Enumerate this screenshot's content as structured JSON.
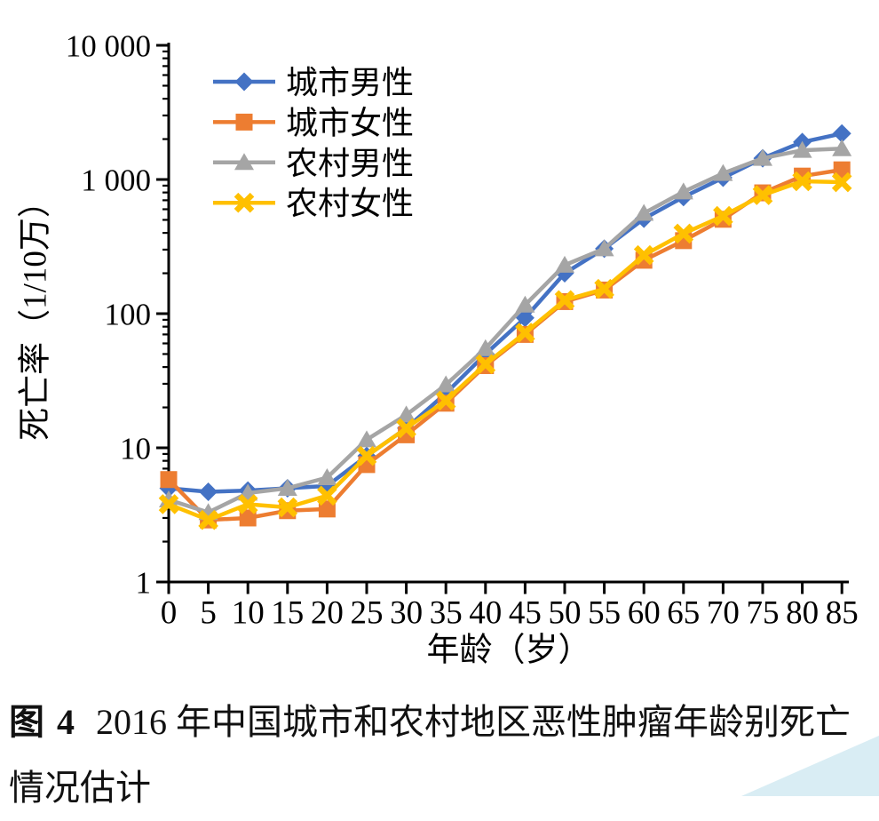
{
  "figure": {
    "caption_label": "图 4",
    "caption_line1": "2016 年中国城市和农村地区恶性肿瘤年龄别死亡",
    "caption_line2": "情况估计"
  },
  "chart_data": {
    "type": "line",
    "title": "",
    "xlabel": "年龄（岁）",
    "ylabel": "死亡率（1/10万）",
    "y_scale": "log10",
    "ylim": [
      1,
      10000
    ],
    "grid": false,
    "legend_position": "top-left-inside",
    "y_ticks": [
      {
        "value": 1,
        "label": "1"
      },
      {
        "value": 10,
        "label": "10"
      },
      {
        "value": 100,
        "label": "100"
      },
      {
        "value": 1000,
        "label": "1 000"
      },
      {
        "value": 10000,
        "label": "10 000"
      }
    ],
    "x": [
      0,
      5,
      10,
      15,
      20,
      25,
      30,
      35,
      40,
      45,
      50,
      55,
      60,
      65,
      70,
      75,
      80,
      85
    ],
    "series": [
      {
        "name": "城市男性",
        "color": "#4472C4",
        "marker": "diamond",
        "values": [
          5.0,
          4.7,
          4.8,
          5.0,
          5.2,
          8.7,
          14.0,
          25.5,
          50,
          93,
          200,
          305,
          510,
          740,
          1030,
          1440,
          1900,
          2200
        ]
      },
      {
        "name": "城市女性",
        "color": "#ED7D31",
        "marker": "square",
        "values": [
          5.8,
          2.9,
          3.0,
          3.4,
          3.5,
          7.5,
          12.5,
          21.5,
          41,
          70,
          123,
          150,
          250,
          350,
          505,
          795,
          1060,
          1180
        ]
      },
      {
        "name": "农村男性",
        "color": "#A5A5A5",
        "marker": "triangle",
        "values": [
          4.1,
          3.3,
          4.6,
          5.0,
          6.0,
          11.5,
          17.6,
          29.5,
          55,
          116,
          230,
          305,
          560,
          810,
          1110,
          1440,
          1650,
          1700
        ]
      },
      {
        "name": "农村女性",
        "color": "#FFC000",
        "marker": "x",
        "values": [
          3.8,
          2.9,
          3.8,
          3.6,
          4.4,
          8.7,
          14.0,
          22.5,
          42,
          72,
          126,
          153,
          273,
          395,
          535,
          765,
          970,
          955
        ]
      }
    ]
  },
  "decor": {
    "corner_color": "#d9edf4"
  }
}
